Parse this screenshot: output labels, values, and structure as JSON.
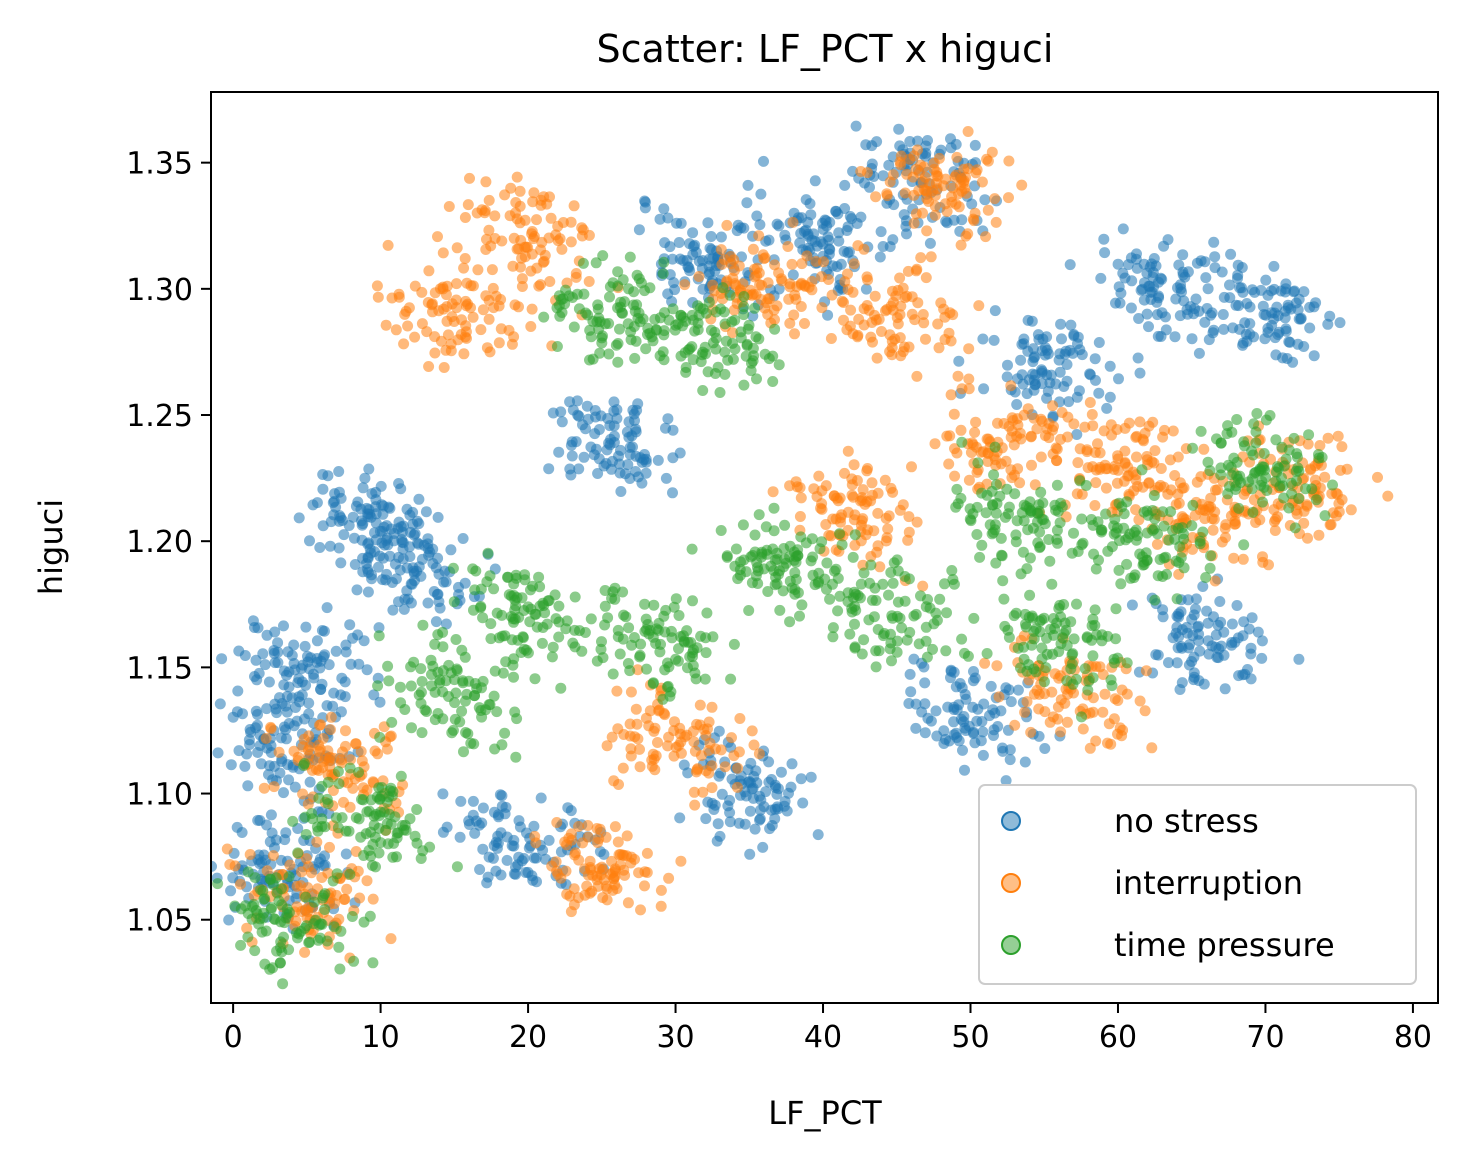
{
  "chart_data": {
    "type": "scatter",
    "title": "Scatter: LF_PCT x higuci",
    "xlabel": "LF_PCT",
    "ylabel": "higuci",
    "xlim": [
      -1.5,
      81.7
    ],
    "ylim": [
      1.017,
      1.378
    ],
    "x_ticks": [
      0,
      10,
      20,
      30,
      40,
      50,
      60,
      70,
      80
    ],
    "x_tick_labels": [
      "0",
      "10",
      "20",
      "30",
      "40",
      "50",
      "60",
      "70",
      "80"
    ],
    "y_ticks": [
      1.05,
      1.1,
      1.15,
      1.2,
      1.25,
      1.3,
      1.35
    ],
    "y_tick_labels": [
      "1.05",
      "1.10",
      "1.15",
      "1.20",
      "1.25",
      "1.30",
      "1.35"
    ],
    "grid": false,
    "legend_position": "lower-right",
    "series": [
      {
        "name": "no stress",
        "color": "#1f77b4",
        "clusters": [
          {
            "x": 3,
            "y": 1.07
          },
          {
            "x": 4,
            "y": 1.12
          },
          {
            "x": 5,
            "y": 1.15
          },
          {
            "x": 9,
            "y": 1.21
          },
          {
            "x": 12,
            "y": 1.19
          },
          {
            "x": 20,
            "y": 1.08
          },
          {
            "x": 26,
            "y": 1.24
          },
          {
            "x": 32,
            "y": 1.31
          },
          {
            "x": 40,
            "y": 1.32
          },
          {
            "x": 47,
            "y": 1.34
          },
          {
            "x": 55,
            "y": 1.27
          },
          {
            "x": 63,
            "y": 1.3
          },
          {
            "x": 70,
            "y": 1.29
          },
          {
            "x": 66,
            "y": 1.16
          },
          {
            "x": 50,
            "y": 1.13
          },
          {
            "x": 35,
            "y": 1.1
          }
        ]
      },
      {
        "name": "interruption",
        "color": "#ff7f0e",
        "clusters": [
          {
            "x": 7,
            "y": 1.11
          },
          {
            "x": 5,
            "y": 1.06
          },
          {
            "x": 15,
            "y": 1.29
          },
          {
            "x": 20,
            "y": 1.32
          },
          {
            "x": 25,
            "y": 1.07
          },
          {
            "x": 30,
            "y": 1.12
          },
          {
            "x": 36,
            "y": 1.3
          },
          {
            "x": 45,
            "y": 1.29
          },
          {
            "x": 48,
            "y": 1.34
          },
          {
            "x": 52,
            "y": 1.24
          },
          {
            "x": 60,
            "y": 1.23
          },
          {
            "x": 57,
            "y": 1.14
          },
          {
            "x": 72,
            "y": 1.22
          },
          {
            "x": 66,
            "y": 1.21
          },
          {
            "x": 42,
            "y": 1.21
          }
        ]
      },
      {
        "name": "time pressure",
        "color": "#2ca02c",
        "clusters": [
          {
            "x": 4,
            "y": 1.05
          },
          {
            "x": 9,
            "y": 1.09
          },
          {
            "x": 15,
            "y": 1.14
          },
          {
            "x": 20,
            "y": 1.17
          },
          {
            "x": 26,
            "y": 1.29
          },
          {
            "x": 33,
            "y": 1.28
          },
          {
            "x": 37,
            "y": 1.19
          },
          {
            "x": 45,
            "y": 1.17
          },
          {
            "x": 53,
            "y": 1.21
          },
          {
            "x": 62,
            "y": 1.2
          },
          {
            "x": 70,
            "y": 1.23
          },
          {
            "x": 56,
            "y": 1.16
          },
          {
            "x": 29,
            "y": 1.16
          }
        ]
      }
    ]
  }
}
